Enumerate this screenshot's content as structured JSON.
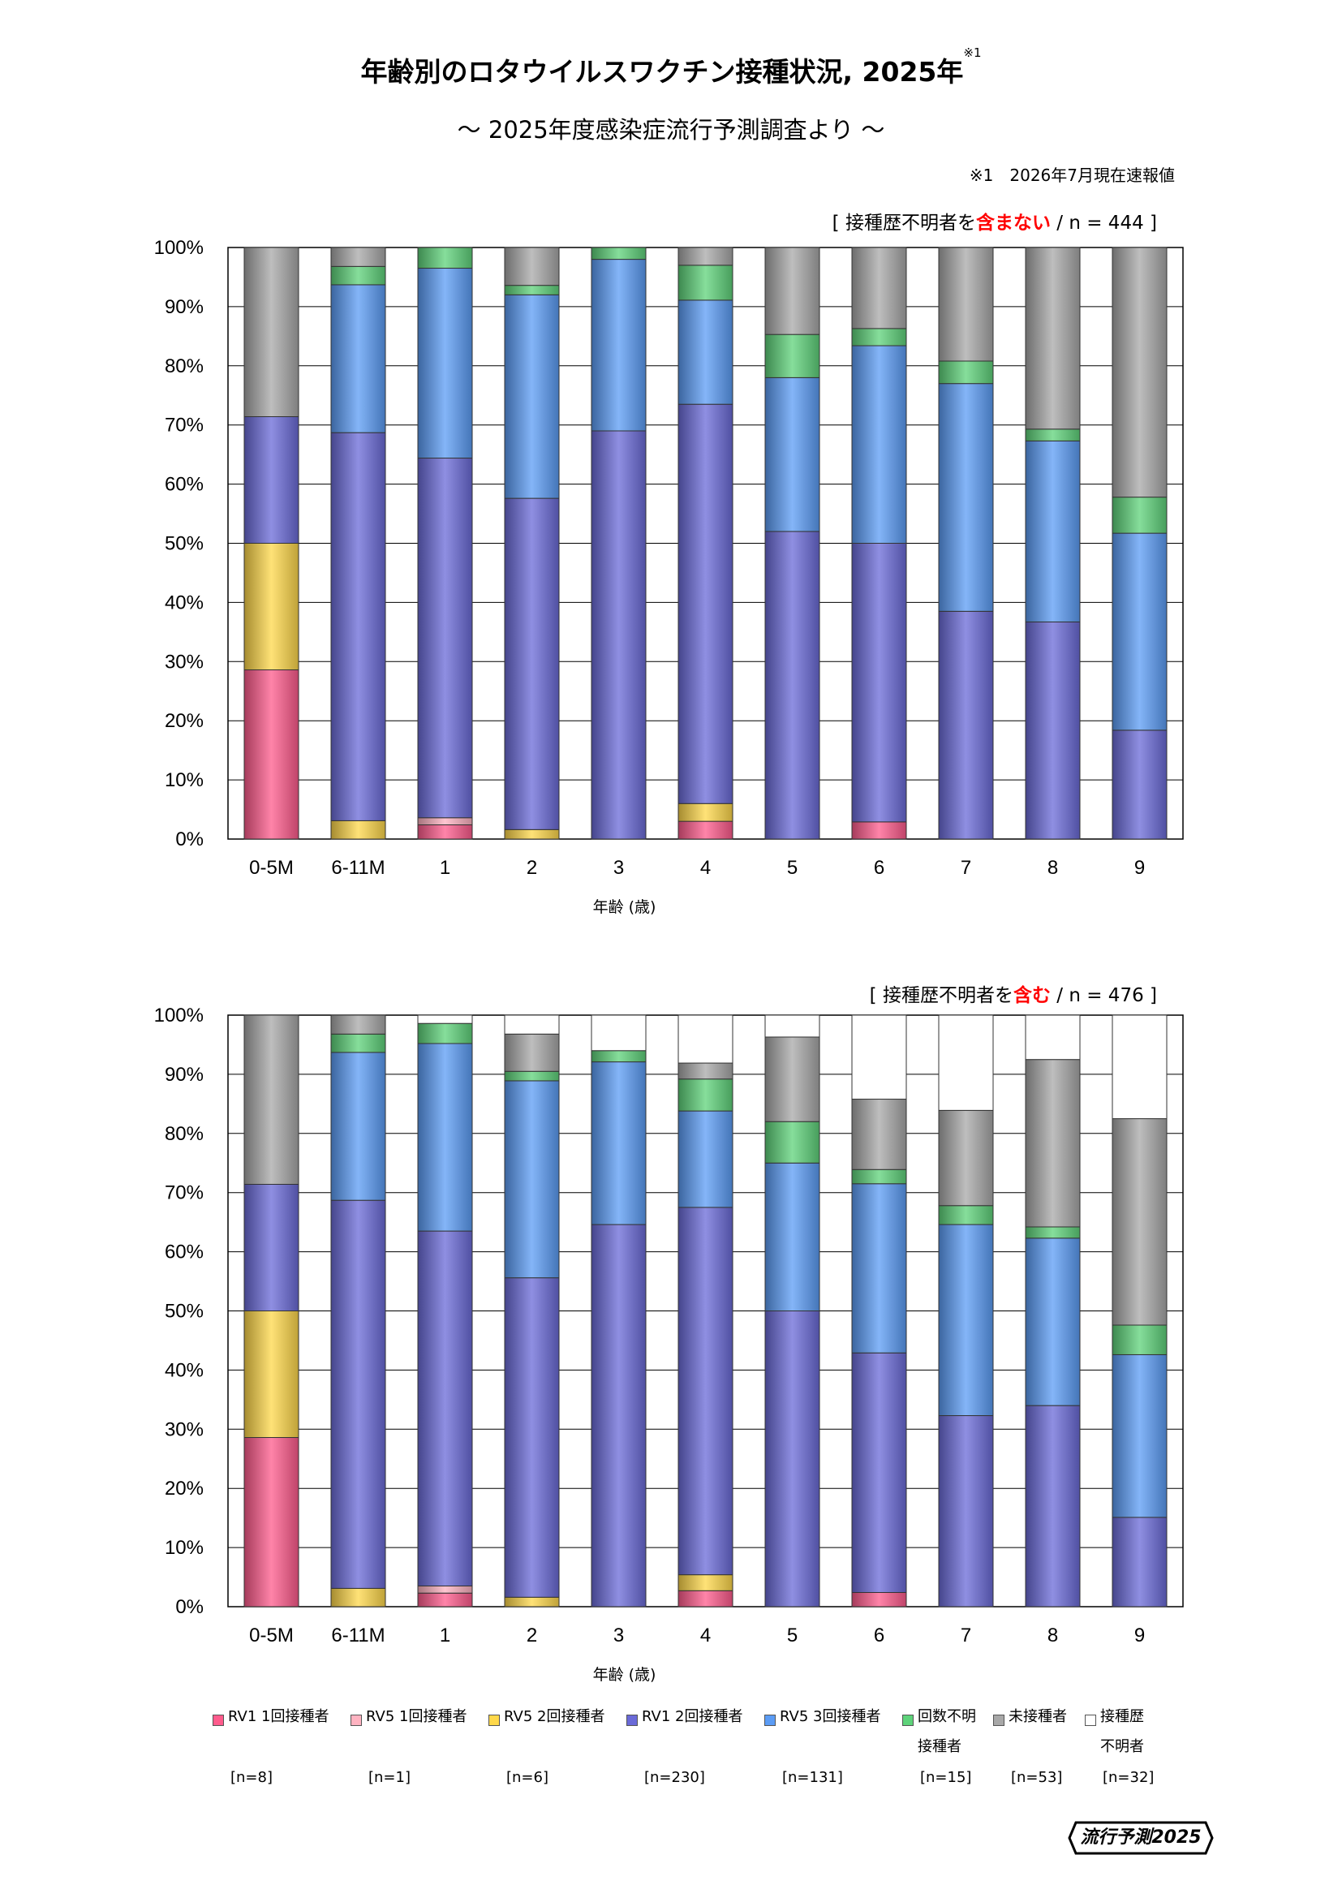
{
  "header": {
    "title": "年齢別のロタウイルスワクチン接種状況, 2025年",
    "title_sup": "※1",
    "subtitle": "～ 2025年度感染症流行予測調査より ～",
    "note": "※1　2026年7月現在速報値"
  },
  "captions": [
    {
      "open": "[ 接種歴不明者を",
      "red": "含まない",
      "rest": " / n = 444 ]"
    },
    {
      "open": "[ 接種歴不明者を",
      "red": "含む",
      "rest": " / n = 476 ]"
    }
  ],
  "colors": {
    "rv1_1": "#ff5b8c",
    "rv5_1": "#ffb3c1",
    "rv5_2": "#ffd84a",
    "rv1_2": "#6a6ad8",
    "rv5_3": "#5b9cf5",
    "unknown_count": "#5ed37a",
    "unvaccinated": "#a8a8a8",
    "history_unknown": "#ffffff",
    "grid": "#000000"
  },
  "legend": {
    "items": [
      {
        "key": "rv1_1",
        "label": "RV1 1回接種者",
        "n": "[n=8]"
      },
      {
        "key": "rv5_1",
        "label": "RV5 1回接種者",
        "n": "[n=1]"
      },
      {
        "key": "rv5_2",
        "label": "RV5 2回接種者",
        "n": "[n=6]"
      },
      {
        "key": "rv1_2",
        "label": "RV1 2回接種者",
        "n": "[n=230]"
      },
      {
        "key": "rv5_3",
        "label": "RV5 3回接種者",
        "n": "[n=131]"
      },
      {
        "key": "unknown_count",
        "label": "回数不明\n接種者",
        "n": "[n=15]"
      },
      {
        "key": "unvaccinated",
        "label": "未接種者",
        "n": "[n=53]"
      },
      {
        "key": "history_unknown",
        "label": "接種歴\n不明者",
        "n": "[n=32]"
      }
    ]
  },
  "logo": {
    "text": "流行予測2025"
  },
  "chart_data": [
    {
      "type": "bar",
      "stacked": true,
      "categories": [
        "0-5M",
        "6-11M",
        "1",
        "2",
        "3",
        "4",
        "5",
        "6",
        "7",
        "8",
        "9"
      ],
      "xlabel": "年齢 (歳)",
      "ylim": [
        0,
        100
      ],
      "yticks": [
        "0%",
        "10%",
        "20%",
        "30%",
        "40%",
        "50%",
        "60%",
        "70%",
        "80%",
        "90%",
        "100%"
      ],
      "series": [
        {
          "key": "rv1_1",
          "name": "RV1 1回接種者",
          "values": [
            28.6,
            0,
            2.4,
            0,
            0,
            3.0,
            0,
            2.9,
            0,
            0,
            0
          ]
        },
        {
          "key": "rv5_1",
          "name": "RV5 1回接種者",
          "values": [
            0,
            0,
            1.2,
            0,
            0,
            0,
            0,
            0,
            0,
            0,
            0
          ]
        },
        {
          "key": "rv5_2",
          "name": "RV5 2回接種者",
          "values": [
            21.4,
            3.1,
            0,
            1.6,
            0,
            3.0,
            0,
            0,
            0,
            0,
            0
          ]
        },
        {
          "key": "rv1_2",
          "name": "RV1 2回接種者",
          "values": [
            21.4,
            65.6,
            60.8,
            56.0,
            69.0,
            67.5,
            52.0,
            47.1,
            38.5,
            36.7,
            18.4
          ]
        },
        {
          "key": "rv5_3",
          "name": "RV5 3回接種者",
          "values": [
            0,
            25.0,
            32.1,
            34.4,
            29.0,
            17.6,
            26.0,
            33.4,
            38.5,
            30.6,
            33.3
          ]
        },
        {
          "key": "unknown_count",
          "name": "回数不明接種者",
          "values": [
            0,
            3.1,
            3.5,
            1.6,
            2.0,
            5.9,
            7.3,
            2.9,
            3.8,
            2.0,
            6.1
          ]
        },
        {
          "key": "unvaccinated",
          "name": "未接種者",
          "values": [
            28.6,
            3.2,
            0,
            6.4,
            0,
            3.0,
            14.7,
            13.7,
            19.2,
            30.7,
            42.2
          ]
        }
      ]
    },
    {
      "type": "bar",
      "stacked": true,
      "categories": [
        "0-5M",
        "6-11M",
        "1",
        "2",
        "3",
        "4",
        "5",
        "6",
        "7",
        "8",
        "9"
      ],
      "xlabel": "年齢 (歳)",
      "ylim": [
        0,
        100
      ],
      "yticks": [
        "0%",
        "10%",
        "20%",
        "30%",
        "40%",
        "50%",
        "60%",
        "70%",
        "80%",
        "90%",
        "100%"
      ],
      "series": [
        {
          "key": "rv1_1",
          "name": "RV1 1回接種者",
          "values": [
            28.6,
            0,
            2.3,
            0,
            0,
            2.7,
            0,
            2.4,
            0,
            0,
            0
          ]
        },
        {
          "key": "rv5_1",
          "name": "RV5 1回接種者",
          "values": [
            0,
            0,
            1.2,
            0,
            0,
            0,
            0,
            0,
            0,
            0,
            0
          ]
        },
        {
          "key": "rv5_2",
          "name": "RV5 2回接種者",
          "values": [
            21.4,
            3.1,
            0,
            1.6,
            0,
            2.7,
            0,
            0,
            0,
            0,
            0
          ]
        },
        {
          "key": "rv1_2",
          "name": "RV1 2回接種者",
          "values": [
            21.4,
            65.6,
            60.0,
            54.0,
            64.6,
            62.1,
            50.0,
            40.5,
            32.3,
            34.0,
            15.1
          ]
        },
        {
          "key": "rv5_3",
          "name": "RV5 3回接種者",
          "values": [
            0,
            25.0,
            31.7,
            33.3,
            27.5,
            16.3,
            25.0,
            28.6,
            32.3,
            28.3,
            27.5
          ]
        },
        {
          "key": "unknown_count",
          "name": "回数不明接種者",
          "values": [
            0,
            3.1,
            3.4,
            1.6,
            1.9,
            5.4,
            7.0,
            2.4,
            3.2,
            1.9,
            5.0
          ]
        },
        {
          "key": "unvaccinated",
          "name": "未接種者",
          "values": [
            28.6,
            3.2,
            0,
            6.3,
            0,
            2.7,
            14.3,
            11.9,
            16.1,
            28.3,
            34.9
          ]
        },
        {
          "key": "history_unknown",
          "name": "接種歴不明者",
          "values": [
            0,
            0,
            1.4,
            3.2,
            6.0,
            8.1,
            3.7,
            14.2,
            16.1,
            7.5,
            17.5
          ]
        }
      ]
    }
  ]
}
